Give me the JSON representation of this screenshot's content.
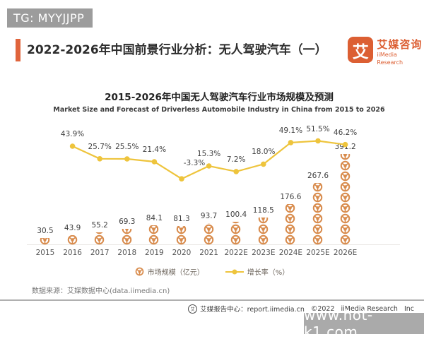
{
  "badges": {
    "tg": "TG: MYYJJPP"
  },
  "header": {
    "title": "2022-2026年中国前景行业分析：无人驾驶汽车（一）",
    "logo": {
      "mark": "艾",
      "name": "艾媒咨询",
      "subtitle": "iiMedia Research"
    }
  },
  "chart_data": {
    "type": "bar",
    "title": "2015-2026年中国无人驾驶汽车行业市场规模及预测",
    "subtitle_en": "Market Size and Forecast of Driverless Automobile Industry in China from 2015 to 2026",
    "categories": [
      "2015",
      "2016",
      "2017",
      "2018",
      "2019",
      "2020",
      "2021",
      "2022E",
      "2023E",
      "2024E",
      "2025E",
      "2026E"
    ],
    "series": [
      {
        "name": "市场规模（亿元）",
        "type": "bar",
        "marker": "steering-wheel-icon",
        "values": [
          30.5,
          43.9,
          55.2,
          69.3,
          84.1,
          81.3,
          93.7,
          100.4,
          118.5,
          176.6,
          267.6,
          391.2
        ],
        "labels": [
          "30.5",
          "43.9",
          "55.2",
          "69.3",
          "84.1",
          "81.3",
          "93.7",
          "100.4",
          "118.5",
          "176.6",
          "267.6",
          "391.2"
        ]
      },
      {
        "name": "增长率（%）",
        "type": "line",
        "values": [
          null,
          43.9,
          25.7,
          25.5,
          21.4,
          -3.3,
          15.3,
          7.2,
          18.0,
          49.1,
          51.5,
          46.2
        ],
        "labels": [
          "",
          "43.9%",
          "25.7%",
          "25.5%",
          "21.4%",
          "-3.3%",
          "15.3%",
          "7.2%",
          "18.0%",
          "49.1%",
          "51.5%",
          "46.2%"
        ]
      }
    ],
    "legend_position": "bottom",
    "gridlines": false,
    "axes_hidden": true
  },
  "source": "数据来源：艾媒数据中心(data.iimedia.cn)",
  "footer": {
    "report_center": "艾媒报告中心：report.iimedia.cn",
    "copyright": "©2022",
    "company": "iiMedia Research",
    "suffix": "Inc"
  },
  "watermark": "www.hot-k1.com",
  "colors": {
    "brand_orange": "#DC5F33",
    "icon_orange": "#D88B4C",
    "line_yellow": "#EEC43C",
    "badge_gray": "#9C9C9C",
    "watermark_gray": "#AAAAAA"
  }
}
